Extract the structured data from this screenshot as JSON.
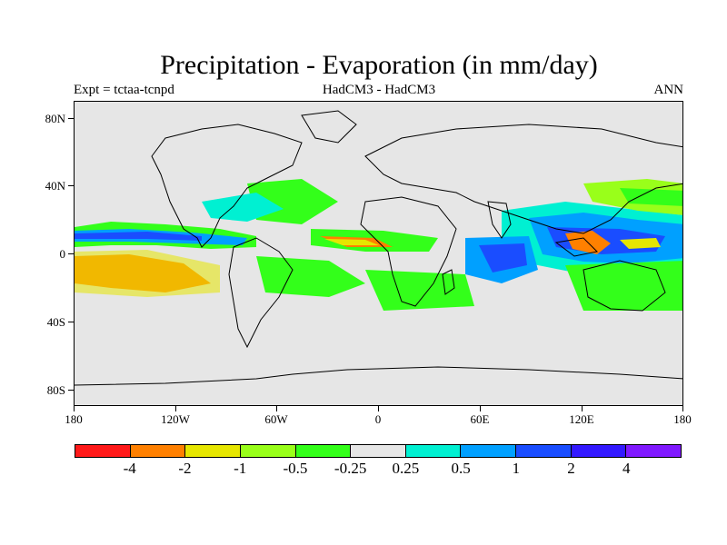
{
  "title": "Precipitation - Evaporation (in mm/day)",
  "subtitle_left": "Expt = tctaa-tcnpd",
  "subtitle_center": "HadCM3 - HadCM3",
  "subtitle_right": "ANN",
  "y_axis_labels": [
    "80N",
    "40N",
    "0",
    "40S",
    "80S"
  ],
  "x_axis_labels": [
    "180",
    "120W",
    "60W",
    "0",
    "60E",
    "120E",
    "180"
  ],
  "colorbar": {
    "colors": [
      "#ff1a1a",
      "#ff8000",
      "#e6e600",
      "#99ff1a",
      "#33ff1a",
      "#e6e6e6",
      "#00f0d2",
      "#00a0ff",
      "#1a4dff",
      "#3319ff",
      "#8019ff"
    ],
    "labels": [
      "-4",
      "-2",
      "-1",
      "-0.5",
      "-0.25",
      "0.25",
      "0.5",
      "1",
      "2",
      "4"
    ]
  },
  "map_background_color": "#e6e6e6"
}
